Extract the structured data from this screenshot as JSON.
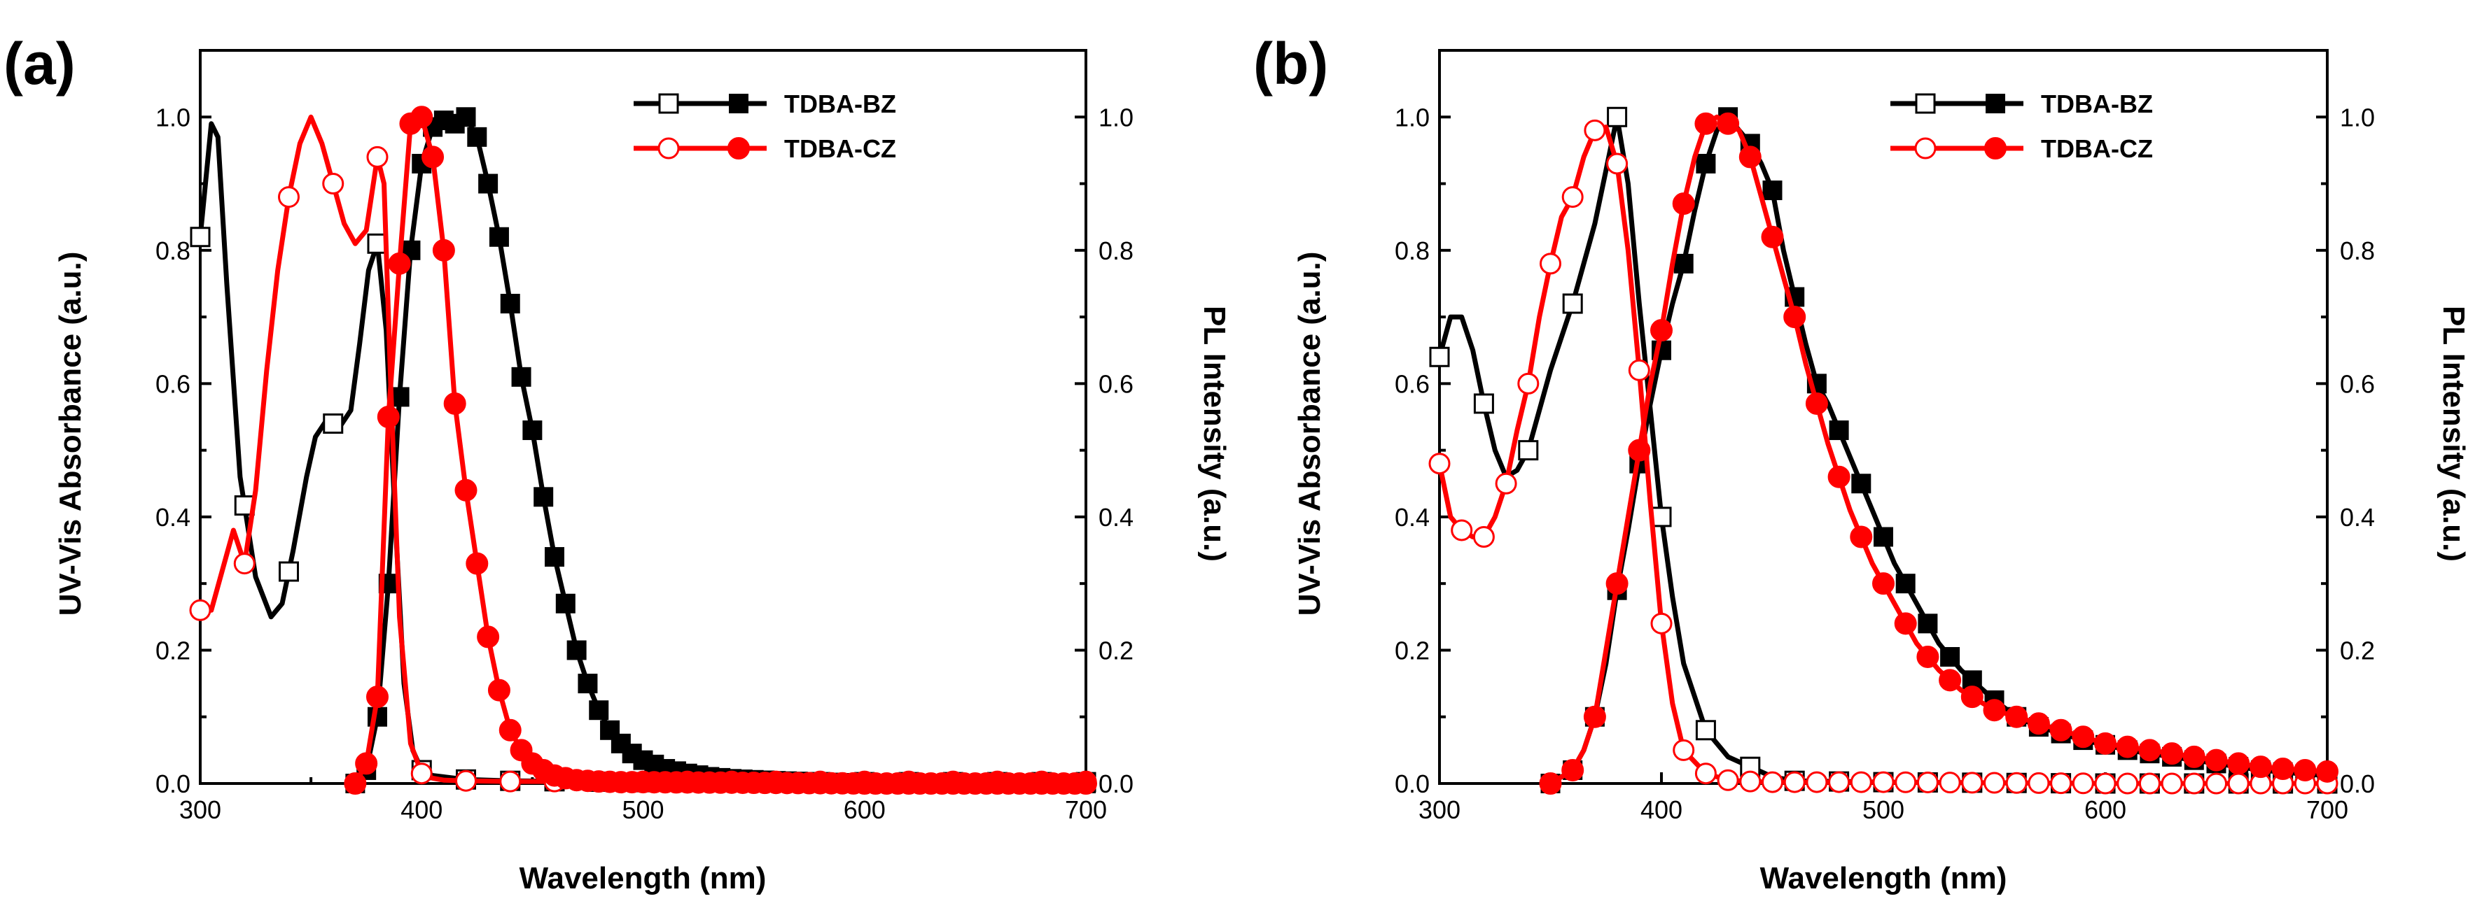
{
  "colors": {
    "black": "#000000",
    "red": "#ff0000"
  },
  "chart_data": [
    {
      "panel_label": "(a)",
      "type": "line",
      "xlabel": "Wavelength (nm)",
      "ylabel_left": "UV-Vis Absorbance (a.u.)",
      "ylabel_right": "PL Intensity (a.u.)",
      "xlim": [
        300,
        700
      ],
      "ylim": [
        0,
        1.1
      ],
      "xticks": [
        "300",
        "400",
        "500",
        "600",
        "700"
      ],
      "yticks": [
        "0.0",
        "0.2",
        "0.4",
        "0.6",
        "0.8",
        "1.0"
      ],
      "legend": [
        {
          "label": "TDBA-BZ",
          "color": "#000000"
        },
        {
          "label": "TDBA-CZ",
          "color": "#ff0000"
        }
      ],
      "series": [
        {
          "name": "TDBA-BZ absorbance",
          "role": "abs",
          "color": "#000000",
          "marker_every": 20,
          "x": [
            300,
            305,
            308,
            312,
            318,
            325,
            332,
            337,
            342,
            348,
            352,
            358,
            362,
            368,
            372,
            376,
            380,
            384,
            388,
            392,
            396,
            400,
            405,
            410,
            420,
            440,
            470,
            500,
            550,
            600,
            700
          ],
          "y": [
            0.82,
            0.99,
            0.97,
            0.75,
            0.46,
            0.31,
            0.25,
            0.27,
            0.35,
            0.46,
            0.52,
            0.55,
            0.53,
            0.56,
            0.66,
            0.77,
            0.81,
            0.68,
            0.4,
            0.15,
            0.05,
            0.02,
            0.012,
            0.01,
            0.006,
            0.004,
            0.003,
            0.002,
            0.002,
            0.002,
            0.002
          ]
        },
        {
          "name": "TDBA-BZ PL",
          "role": "pl",
          "color": "#000000",
          "marker_every": 5,
          "x": [
            370,
            375,
            380,
            385,
            390,
            395,
            400,
            405,
            410,
            415,
            420,
            425,
            430,
            435,
            440,
            445,
            450,
            455,
            460,
            465,
            470,
            475,
            480,
            485,
            490,
            495,
            500,
            510,
            520,
            530,
            540,
            560,
            580,
            600,
            650,
            700
          ],
          "y": [
            0.0,
            0.02,
            0.1,
            0.3,
            0.58,
            0.8,
            0.93,
            0.985,
            0.995,
            0.99,
            1.0,
            0.97,
            0.9,
            0.82,
            0.72,
            0.61,
            0.53,
            0.43,
            0.34,
            0.27,
            0.2,
            0.15,
            0.11,
            0.08,
            0.06,
            0.045,
            0.035,
            0.022,
            0.015,
            0.01,
            0.007,
            0.004,
            0.002,
            0.0,
            0.0,
            0.0
          ]
        },
        {
          "name": "TDBA-CZ absorbance",
          "role": "abs",
          "color": "#ff0000",
          "marker_every": 20,
          "x": [
            300,
            305,
            310,
            315,
            320,
            325,
            330,
            335,
            340,
            345,
            350,
            355,
            360,
            365,
            370,
            375,
            380,
            383,
            386,
            390,
            395,
            400,
            405,
            410,
            420,
            440,
            470,
            500,
            550,
            600,
            700
          ],
          "y": [
            0.26,
            0.26,
            0.32,
            0.38,
            0.33,
            0.44,
            0.62,
            0.77,
            0.88,
            0.96,
            1.0,
            0.96,
            0.9,
            0.84,
            0.81,
            0.83,
            0.94,
            0.9,
            0.6,
            0.25,
            0.06,
            0.015,
            0.008,
            0.005,
            0.004,
            0.003,
            0.003,
            0.003,
            0.003,
            0.003,
            0.003
          ]
        },
        {
          "name": "TDBA-CZ PL",
          "role": "pl",
          "color": "#ff0000",
          "marker_every": 5,
          "x": [
            370,
            375,
            380,
            385,
            390,
            395,
            400,
            405,
            410,
            415,
            420,
            425,
            430,
            435,
            440,
            445,
            450,
            455,
            460,
            465,
            470,
            480,
            490,
            500,
            550,
            600,
            700
          ],
          "y": [
            0.0,
            0.03,
            0.13,
            0.55,
            0.78,
            0.99,
            1.0,
            0.94,
            0.8,
            0.57,
            0.44,
            0.33,
            0.22,
            0.14,
            0.08,
            0.05,
            0.03,
            0.02,
            0.012,
            0.008,
            0.005,
            0.003,
            0.002,
            0.002,
            0.001,
            0.0,
            0.0
          ]
        }
      ]
    },
    {
      "panel_label": "(b)",
      "type": "line",
      "xlabel": "Wavelength (nm)",
      "ylabel_left": "UV-Vis Absorbance (a.u.)",
      "ylabel_right": "PL Intensity (a.u.)",
      "xlim": [
        300,
        700
      ],
      "ylim": [
        0,
        1.1
      ],
      "xticks": [
        "300",
        "400",
        "500",
        "600",
        "700"
      ],
      "yticks": [
        "0.0",
        "0.2",
        "0.4",
        "0.6",
        "0.8",
        "1.0"
      ],
      "legend": [
        {
          "label": "TDBA-BZ",
          "color": "#000000"
        },
        {
          "label": "TDBA-CZ",
          "color": "#ff0000"
        }
      ],
      "series": [
        {
          "name": "TDBA-BZ absorbance",
          "role": "abs",
          "color": "#000000",
          "marker_every": 20,
          "x": [
            300,
            305,
            310,
            315,
            320,
            325,
            330,
            335,
            340,
            350,
            360,
            370,
            375,
            380,
            385,
            390,
            395,
            400,
            405,
            410,
            420,
            430,
            440,
            450,
            460,
            500,
            600,
            700
          ],
          "y": [
            0.64,
            0.7,
            0.7,
            0.65,
            0.57,
            0.5,
            0.46,
            0.47,
            0.5,
            0.62,
            0.72,
            0.84,
            0.92,
            1.0,
            0.9,
            0.72,
            0.56,
            0.4,
            0.28,
            0.18,
            0.08,
            0.04,
            0.025,
            0.01,
            0.004,
            0.002,
            0.0,
            0.0
          ]
        },
        {
          "name": "TDBA-BZ PL",
          "role": "pl",
          "color": "#000000",
          "marker_every": 10,
          "x": [
            350,
            360,
            365,
            370,
            375,
            380,
            385,
            390,
            395,
            400,
            405,
            410,
            415,
            420,
            425,
            430,
            435,
            440,
            445,
            450,
            455,
            460,
            465,
            470,
            475,
            480,
            485,
            490,
            495,
            500,
            505,
            510,
            515,
            520,
            525,
            530,
            535,
            540,
            545,
            550,
            560,
            570,
            580,
            590,
            600,
            610,
            620,
            630,
            640,
            650,
            660,
            670,
            680,
            690,
            700
          ],
          "y": [
            0.0,
            0.02,
            0.05,
            0.1,
            0.18,
            0.29,
            0.38,
            0.48,
            0.57,
            0.65,
            0.72,
            0.78,
            0.86,
            0.93,
            0.98,
            1.0,
            0.98,
            0.96,
            0.93,
            0.89,
            0.8,
            0.73,
            0.66,
            0.6,
            0.57,
            0.53,
            0.49,
            0.45,
            0.41,
            0.37,
            0.33,
            0.3,
            0.27,
            0.24,
            0.21,
            0.19,
            0.17,
            0.155,
            0.14,
            0.125,
            0.1,
            0.085,
            0.075,
            0.065,
            0.058,
            0.05,
            0.045,
            0.04,
            0.035,
            0.03,
            0.025,
            0.02,
            0.017,
            0.014,
            0.012
          ]
        },
        {
          "name": "TDBA-CZ absorbance",
          "role": "abs",
          "color": "#ff0000",
          "marker_every": 10,
          "x": [
            300,
            305,
            310,
            315,
            320,
            325,
            330,
            335,
            340,
            345,
            350,
            355,
            360,
            365,
            370,
            375,
            380,
            385,
            390,
            395,
            400,
            405,
            410,
            420,
            430,
            440,
            450,
            500,
            600,
            700
          ],
          "y": [
            0.48,
            0.4,
            0.38,
            0.37,
            0.37,
            0.4,
            0.45,
            0.53,
            0.6,
            0.7,
            0.78,
            0.85,
            0.88,
            0.94,
            0.98,
            0.985,
            0.93,
            0.8,
            0.62,
            0.42,
            0.24,
            0.12,
            0.05,
            0.015,
            0.005,
            0.003,
            0.002,
            0.002,
            0.0,
            0.0
          ]
        },
        {
          "name": "TDBA-CZ PL",
          "role": "pl",
          "color": "#ff0000",
          "marker_every": 10,
          "x": [
            350,
            360,
            365,
            370,
            375,
            380,
            385,
            390,
            395,
            400,
            405,
            410,
            415,
            420,
            425,
            430,
            435,
            440,
            445,
            450,
            455,
            460,
            465,
            470,
            475,
            480,
            485,
            490,
            495,
            500,
            505,
            510,
            515,
            520,
            525,
            530,
            535,
            540,
            545,
            550,
            560,
            570,
            580,
            590,
            600,
            610,
            620,
            630,
            640,
            650,
            660,
            670,
            680,
            690,
            700
          ],
          "y": [
            0.0,
            0.02,
            0.05,
            0.1,
            0.2,
            0.3,
            0.4,
            0.5,
            0.6,
            0.68,
            0.78,
            0.87,
            0.94,
            0.99,
            1.0,
            0.99,
            0.98,
            0.94,
            0.88,
            0.82,
            0.76,
            0.7,
            0.63,
            0.57,
            0.51,
            0.46,
            0.41,
            0.37,
            0.33,
            0.3,
            0.27,
            0.24,
            0.21,
            0.19,
            0.17,
            0.155,
            0.14,
            0.13,
            0.12,
            0.11,
            0.1,
            0.09,
            0.08,
            0.07,
            0.06,
            0.055,
            0.05,
            0.045,
            0.04,
            0.035,
            0.03,
            0.025,
            0.022,
            0.02,
            0.018
          ]
        }
      ]
    }
  ]
}
